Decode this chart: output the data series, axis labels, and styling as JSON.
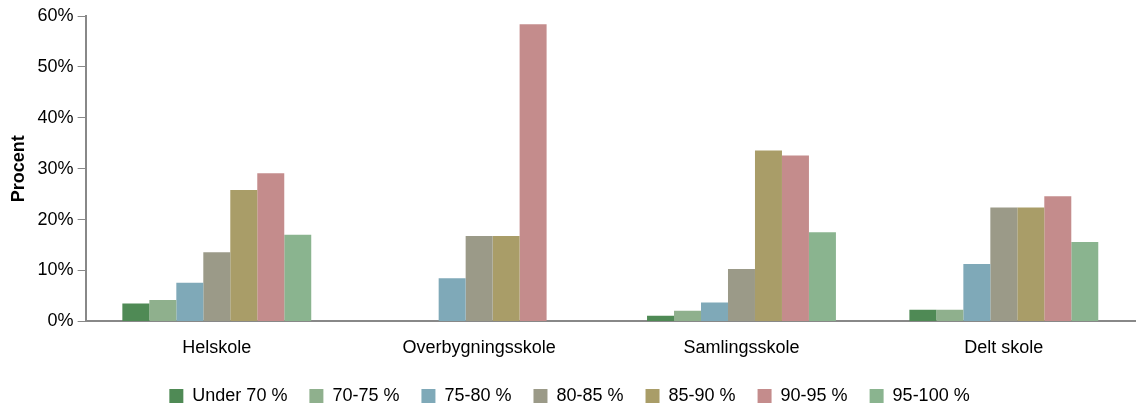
{
  "chart_data": {
    "type": "bar",
    "ylabel": "Procent",
    "categories": [
      "Helskole",
      "Overbygningsskole",
      "Samlingsskole",
      "Delt skole"
    ],
    "series": [
      {
        "name": "Under 70 %",
        "color": "#4f8a55",
        "values": [
          3.5,
          0,
          1.1,
          2.3
        ]
      },
      {
        "name": "70-75 %",
        "color": "#8fb08d",
        "values": [
          4.2,
          0,
          2.1,
          2.3
        ]
      },
      {
        "name": "75-80 %",
        "color": "#7fa9b8",
        "values": [
          7.6,
          8.5,
          3.7,
          11.3
        ]
      },
      {
        "name": "80-85 %",
        "color": "#9b9a88",
        "values": [
          13.6,
          16.8,
          10.3,
          22.4
        ]
      },
      {
        "name": "85-90 %",
        "color": "#a99d68",
        "values": [
          25.8,
          16.8,
          33.6,
          22.4
        ]
      },
      {
        "name": "90-95 %",
        "color": "#c48c8c",
        "values": [
          29.1,
          58.4,
          32.6,
          24.6
        ]
      },
      {
        "name": "95-100 %",
        "color": "#8ab48f",
        "values": [
          17.0,
          null,
          17.5,
          15.6
        ]
      }
    ],
    "ylim": [
      0,
      60
    ],
    "yticks": [
      {
        "value": 0,
        "label": "0%"
      },
      {
        "value": 10,
        "label": "10%"
      },
      {
        "value": 20,
        "label": "20%"
      },
      {
        "value": 30,
        "label": "30%"
      },
      {
        "value": 40,
        "label": "40%"
      },
      {
        "value": 50,
        "label": "50%"
      },
      {
        "value": 60,
        "label": "60%"
      }
    ],
    "grid": false,
    "legend": "bottom"
  }
}
